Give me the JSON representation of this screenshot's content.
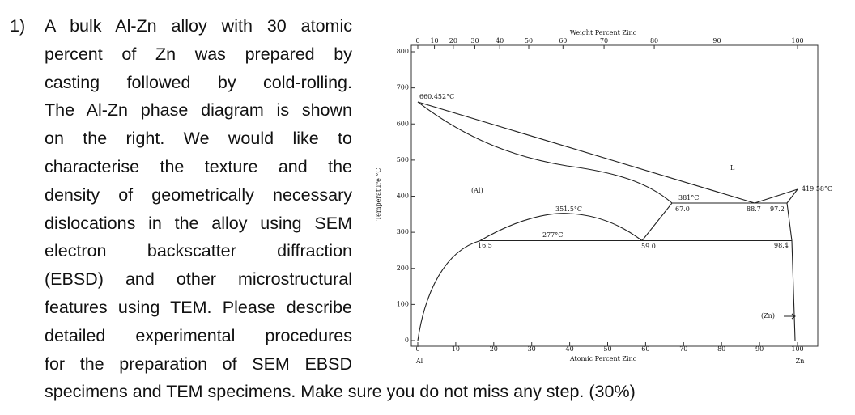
{
  "question": {
    "number": "1)",
    "lines": [
      "A bulk Al-Zn alloy with 30 atomic",
      "percent of Zn was prepared by",
      "casting followed by cold-rolling.",
      "The Al-Zn phase diagram is shown",
      "on the right. We would like to",
      "characterise the texture and the",
      "density of geometrically necessary",
      "dislocations in the alloy using SEM",
      "electron backscatter diffraction",
      "(EBSD) and other microstructural",
      "features using TEM. Please describe",
      "detailed experimental procedures",
      "for the preparation of SEM EBSD",
      "specimens and TEM specimens.  Make sure you do not miss any step. (30%)"
    ]
  },
  "figure": {
    "top_label": "Weight Percent Zinc",
    "x_label": "Atomic Percent Zinc",
    "y_label": "Temperature °C",
    "xlim": [
      0,
      100
    ],
    "xticks": [
      0,
      10,
      20,
      30,
      40,
      50,
      60,
      70,
      80,
      90,
      100
    ],
    "top_ticks": [
      0,
      10,
      20,
      30,
      40,
      50,
      60,
      70,
      80,
      90,
      100
    ],
    "ylim": [
      0,
      800
    ],
    "yticks": [
      0,
      100,
      200,
      300,
      400,
      500,
      600,
      700,
      800
    ],
    "end_labels": [
      "Al",
      "Zn"
    ],
    "annotations": [
      "660.452°C",
      "(Al)",
      "L",
      "351.5°C",
      "277°C",
      "16.5",
      "59.0",
      "381°C",
      "67.0",
      "88.7",
      "97.2",
      "98.4",
      "419.58°C",
      "(Zn)"
    ]
  }
}
